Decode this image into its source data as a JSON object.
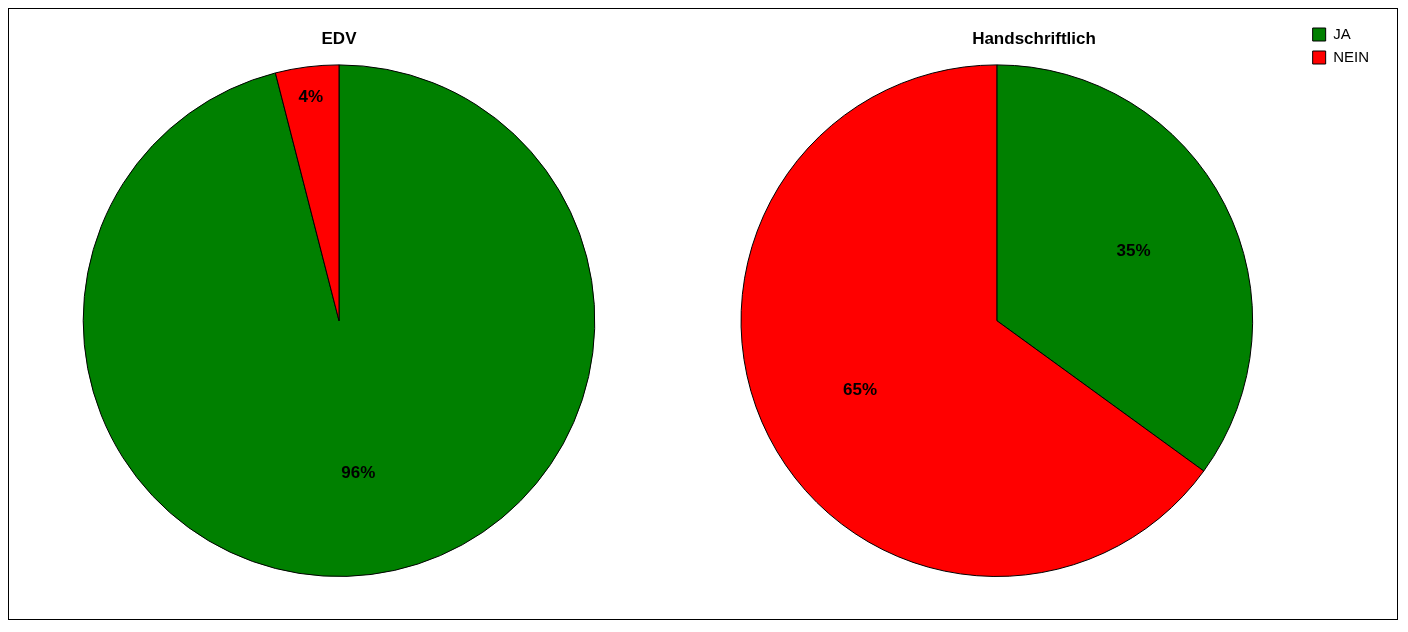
{
  "chart_data": [
    {
      "type": "pie",
      "title": "EDV",
      "categories": [
        null,
        null
      ],
      "values": [
        96,
        4
      ],
      "colors": [
        "#008000",
        "#ff0000"
      ],
      "value_labels": [
        "96%",
        "4%"
      ],
      "legend": false
    },
    {
      "type": "pie",
      "title": "Handschriftlich",
      "categories": [
        "JA",
        "NEIN"
      ],
      "values": [
        35,
        65
      ],
      "colors": [
        "#008000",
        "#ff0000"
      ],
      "value_labels": [
        "35%",
        "65%"
      ],
      "legend": "top right"
    }
  ]
}
